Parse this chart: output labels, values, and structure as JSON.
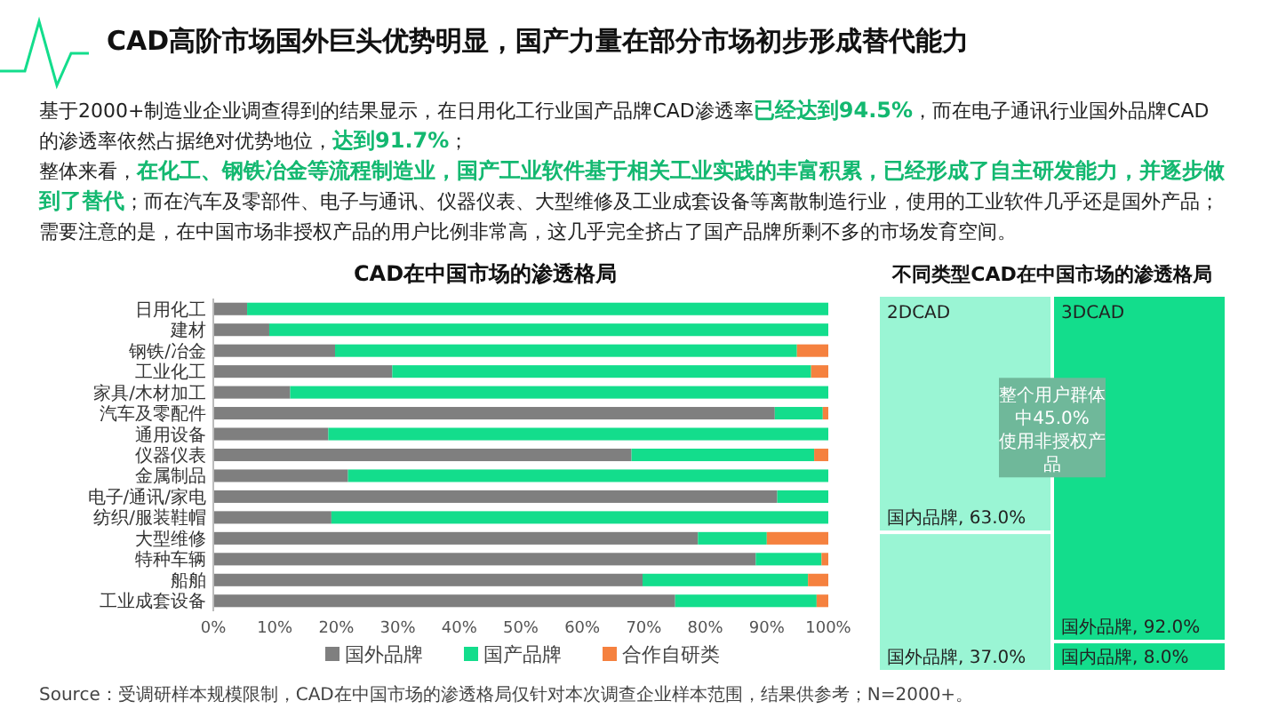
{
  "chart_data": [
    {
      "type": "bar",
      "orientation": "horizontal",
      "stacked": true,
      "title": "CAD在中国市场的渗透格局",
      "categories": [
        "日用化工",
        "建材",
        "钢铁/冶金",
        "工业化工",
        "家具/木材加工",
        "汽车及零配件",
        "通用设备",
        "仪器仪表",
        "金属制品",
        "电子/通讯/家电",
        "纺织/服装鞋帽",
        "大型维修",
        "特种车辆",
        "船舶",
        "工业成套设备"
      ],
      "series": [
        {
          "name": "国外品牌",
          "color": "#7f7f7f",
          "values": [
            5.5,
            9.1,
            19.8,
            29.1,
            12.5,
            91.3,
            18.7,
            68.0,
            21.9,
            91.7,
            19.2,
            78.8,
            88.2,
            69.8,
            75.1
          ]
        },
        {
          "name": "国产品牌",
          "color": "#13dd8c",
          "values": [
            94.5,
            90.9,
            75.1,
            68.1,
            87.5,
            7.8,
            81.3,
            29.7,
            78.1,
            8.3,
            80.8,
            11.2,
            10.7,
            26.9,
            23.0
          ]
        },
        {
          "name": "合作自研类",
          "color": "#f5813f",
          "values": [
            0,
            0,
            5.1,
            2.8,
            0,
            0.9,
            0,
            2.3,
            0,
            0,
            0,
            10.0,
            1.1,
            3.3,
            1.9
          ]
        }
      ],
      "xlim": [
        0,
        100
      ],
      "xticks": [
        {
          "value": 0,
          "label": "0%"
        },
        {
          "value": 10,
          "label": "10%"
        },
        {
          "value": 20,
          "label": "20%"
        },
        {
          "value": 30,
          "label": "30%"
        },
        {
          "value": 40,
          "label": "40%"
        },
        {
          "value": 50,
          "label": "50%"
        },
        {
          "value": 60,
          "label": "60%"
        },
        {
          "value": 70,
          "label": "70%"
        },
        {
          "value": 80,
          "label": "80%"
        },
        {
          "value": 90,
          "label": "90%"
        },
        {
          "value": 100,
          "label": "100%"
        }
      ],
      "legend": "bottom",
      "annotations": [
        "CAD高阶市场国外巨头优势明显，国产力量在部分市场初步形成替代能力",
        "基于2000+制造业企业调查得到的结果显示，在日用化工行业国产品牌CAD渗透率**已经达到94.5%**，而在电子通讯行业国外品牌CAD的渗透率依然占据绝对优势地位，**达到91.7%**；",
        "整体来看，**在化工、钢铁冶金等流程制造业，国产工业软件基于相关工业实践的丰富积累，已经形成了自主研发能力，并逐步做到了替代**；而在汽车及零部件、电子与通讯、仪器仪表、大型维修及工业成套设备等离散制造行业，使用的工业软件几乎还是国外产品；",
        "需要注意的是，在中国市场非授权产品的用户比例非常高，这几乎完全挤占了国产品牌所剩不多的市场发育空间。",
        "Source：受调研样本规模限制，CAD在中国市场的渗透格局仅针对本次调查企业样本范围，结果供参考；N=2000+。"
      ]
    },
    {
      "type": "other",
      "title": "不同类型CAD在中国市场的渗透格局",
      "categories": [
        "国内品牌",
        "国外品牌",
        "国外品牌",
        "国内品牌"
      ],
      "value_labels": [
        ", 63.0%",
        ", 37.0%",
        ", 92.0%",
        ", 8.0%"
      ],
      "values": [
        63.0,
        37.0,
        92.0,
        8.0
      ],
      "colors": [
        "#9af5d4",
        "#9af5d4",
        "#13dd8c",
        "#13dd8c"
      ],
      "annotations": [
        "整个用户群体中45.0%使用非授权产品",
        "2DCAD",
        "3DCAD"
      ]
    }
  ]
}
